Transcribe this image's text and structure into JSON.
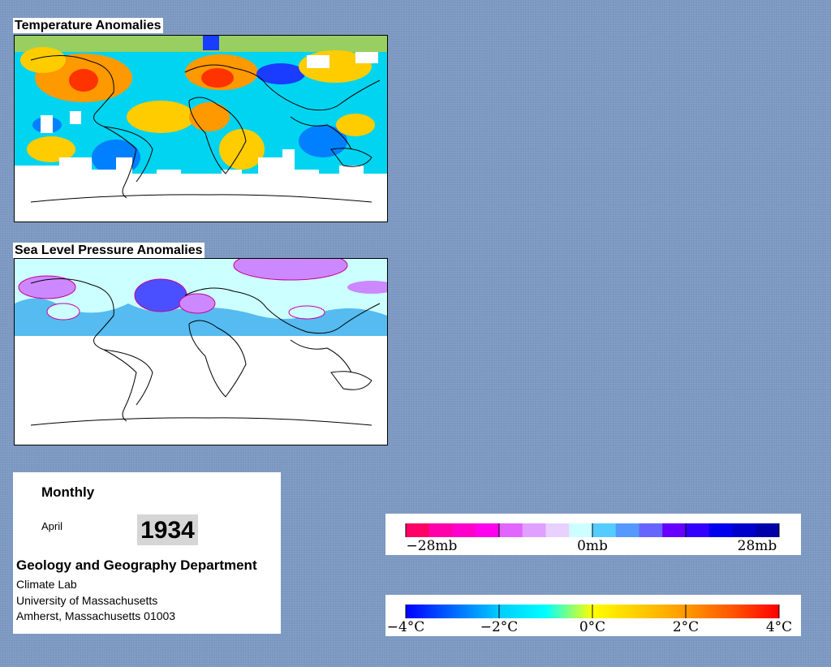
{
  "temperature_map": {
    "title": "Temperature Anomalies",
    "colors": {
      "strong_warm": "#ff3300",
      "warm": "#ff9900",
      "mild_warm": "#ffcc00",
      "slight_warm": "#ffee00",
      "cool": "#00d4f0",
      "cold": "#0080ff",
      "very_cold": "#1a3cff",
      "no_data": "#ffffff"
    }
  },
  "pressure_map": {
    "title": "Sea Level Pressure Anomalies",
    "colors": {
      "near_zero": "#ccffff",
      "positive": "#55bbf0",
      "strong_positive": "#4a50ff",
      "negative": "#cc88ff",
      "contour": "#cc0099"
    }
  },
  "info": {
    "period": "Monthly",
    "month": "April",
    "year": "1934",
    "department": "Geology and Geography Department",
    "lab": "Climate Lab",
    "university": "University of Massachusetts",
    "address": "Amherst, Massachusetts 01003"
  },
  "pressure_legend": {
    "labels": [
      "−28mb",
      "0mb",
      "28mb"
    ],
    "colors": [
      "#ff0066",
      "#ff00aa",
      "#ff00cc",
      "#ff00ee",
      "#e066ff",
      "#e0a0ff",
      "#e8d0ff",
      "#ccffff",
      "#55ccff",
      "#5599ff",
      "#6666ff",
      "#6600ff",
      "#3300ff",
      "#0000ee",
      "#0000cc",
      "#0000aa"
    ]
  },
  "temperature_legend": {
    "labels": [
      "−4°C",
      "−2°C",
      "0°C",
      "2°C",
      "4°C"
    ],
    "gradient": [
      "#0000ff",
      "#0066ff",
      "#00ccff",
      "#00ffff",
      "#ffff00",
      "#ffcc00",
      "#ff9900",
      "#ff5500",
      "#ff0000"
    ]
  }
}
